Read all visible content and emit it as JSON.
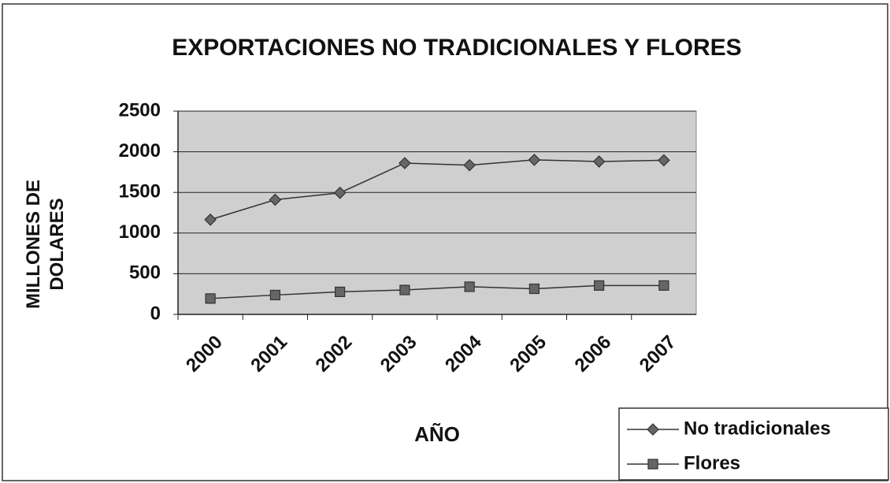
{
  "chart_data": {
    "type": "line",
    "title": "EXPORTACIONES NO TRADICIONALES Y FLORES",
    "x_label": "AÑO",
    "y_label": "MILLONES DE DOLARES",
    "categories": [
      "2000",
      "2001",
      "2002",
      "2003",
      "2004",
      "2005",
      "2006",
      "2007"
    ],
    "series": [
      {
        "name": "No tradicionales",
        "color": "#333333",
        "marker": "diamond",
        "values": [
          1165,
          1410,
          1495,
          1860,
          1835,
          1900,
          1880,
          1895
        ]
      },
      {
        "name": "Flores",
        "color": "#333333",
        "marker": "square",
        "values": [
          195,
          238,
          277,
          300,
          340,
          315,
          355,
          355
        ]
      }
    ],
    "ylim": [
      0,
      2500
    ],
    "yticks": [
      0,
      500,
      1000,
      1500,
      2000,
      2500
    ],
    "grid": true,
    "legend": "bottom-right"
  }
}
